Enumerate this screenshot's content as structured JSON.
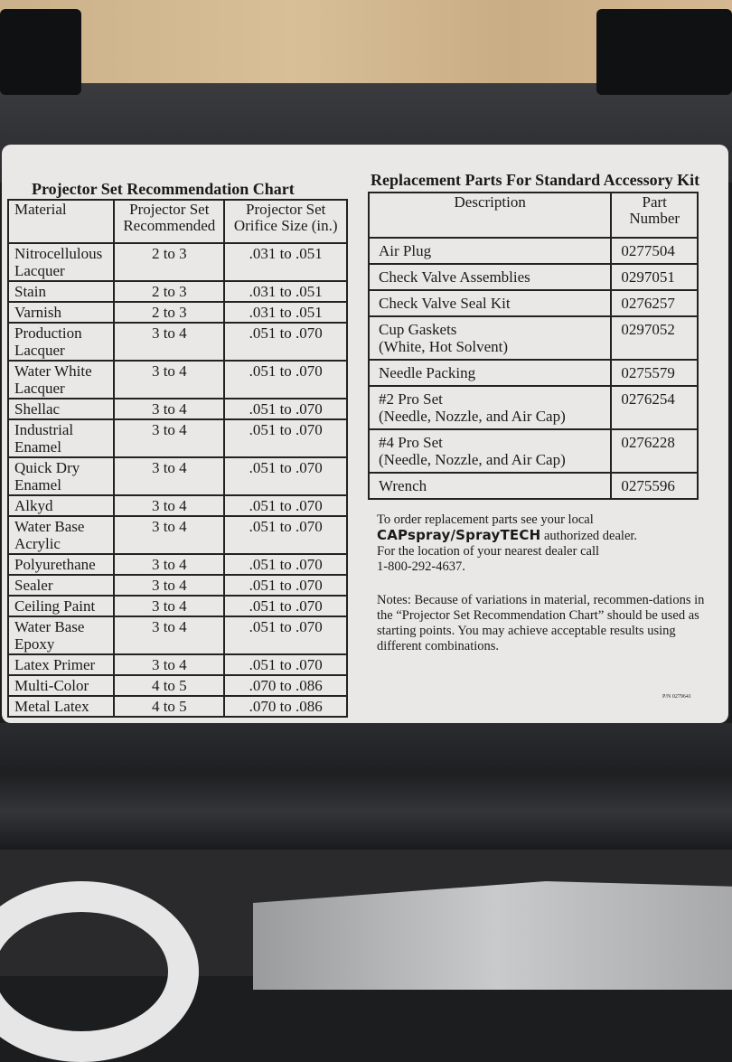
{
  "left_chart": {
    "title": "Projector Set Recommendation Chart",
    "headers": [
      "Material",
      "Projector Set\nRecommended",
      "Projector Set\nOrifice Size (in.)"
    ],
    "rows": [
      [
        "Nitrocellulous\nLacquer",
        "2 to 3",
        ".031 to .051"
      ],
      [
        "Stain",
        "2 to 3",
        ".031 to .051"
      ],
      [
        "Varnish",
        "2 to 3",
        ".031 to .051"
      ],
      [
        "Production\nLacquer",
        "3 to 4",
        ".051 to .070"
      ],
      [
        "Water White\nLacquer",
        "3 to 4",
        ".051 to .070"
      ],
      [
        "Shellac",
        "3 to 4",
        ".051 to .070"
      ],
      [
        "Industrial\nEnamel",
        "3 to 4",
        ".051 to .070"
      ],
      [
        "Quick Dry\nEnamel",
        "3 to 4",
        ".051 to .070"
      ],
      [
        "Alkyd",
        "3 to 4",
        ".051 to .070"
      ],
      [
        "Water Base\nAcrylic",
        "3 to 4",
        ".051 to .070"
      ],
      [
        "Polyurethane",
        "3 to 4",
        ".051 to .070"
      ],
      [
        "Sealer",
        "3 to 4",
        ".051 to .070"
      ],
      [
        "Ceiling Paint",
        "3 to 4",
        ".051 to .070"
      ],
      [
        "Water Base\nEpoxy",
        "3 to 4",
        ".051 to .070"
      ],
      [
        "Latex Primer",
        "3 to 4",
        ".051 to .070"
      ],
      [
        "Multi-Color",
        "4 to 5",
        ".070 to .086"
      ],
      [
        "Metal Latex",
        "4 to 5",
        ".070 to .086"
      ]
    ]
  },
  "right_chart": {
    "title": "Replacement Parts For Standard Accessory Kit",
    "headers": [
      "Description",
      "Part\nNumber"
    ],
    "rows": [
      [
        "Air Plug",
        "0277504"
      ],
      [
        "Check Valve Assemblies",
        "0297051"
      ],
      [
        "Check Valve Seal Kit",
        "0276257"
      ],
      [
        "Cup Gaskets\n(White, Hot Solvent)",
        "0297052"
      ],
      [
        "Needle Packing",
        "0275579"
      ],
      [
        "#2 Pro Set\n(Needle, Nozzle, and Air Cap)",
        "0276254"
      ],
      [
        "#4 Pro Set\n(Needle, Nozzle, and Air Cap)",
        "0276228"
      ],
      [
        "Wrench",
        "0275596"
      ]
    ]
  },
  "order": {
    "line1": "To order replacement parts see your local",
    "brand": "CAPspray/SprayTECH",
    "line2": " authorized dealer.",
    "line3": "For the location of your nearest dealer call",
    "phone": "1-800-292-4637."
  },
  "notes": "Notes: Because of variations in material, recommen-dations in the “Projector Set Recommendation Chart” should be used as starting points. You may achieve acceptable results using different combinations.",
  "part_tag": "P/N 0279641"
}
